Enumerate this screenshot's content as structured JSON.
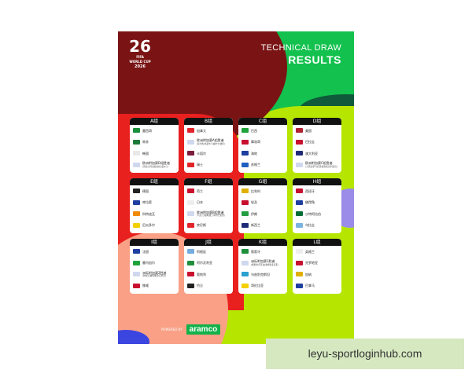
{
  "logo": {
    "numerals": "26",
    "brand": "FIFA",
    "line1": "WORLD CUP",
    "line2": "2026"
  },
  "header": {
    "line1": "TECHNICAL DRAW",
    "line2": "RESULTS"
  },
  "groups": [
    {
      "name": "A组",
      "teams": [
        {
          "n": "墨西哥",
          "c": "#1a8f3a"
        },
        {
          "n": "南非",
          "c": "#1f7a3a"
        },
        {
          "n": "韩国",
          "c": "#e8e8e8"
        },
        {
          "n": "欧洲附加赛D组胜者",
          "s": "(丹麦/北马其顿/捷克/爱尔兰)",
          "c": "#cfd8ee"
        }
      ]
    },
    {
      "name": "B组",
      "teams": [
        {
          "n": "加拿大",
          "c": "#e0242a"
        },
        {
          "n": "欧洲附加赛A组胜者",
          "s": "(意大利/北爱尔兰/威尔士/波黑)",
          "c": "#cfd8ee"
        },
        {
          "n": "卡塔尔",
          "c": "#7b1d3a"
        },
        {
          "n": "瑞士",
          "c": "#e0242a"
        }
      ]
    },
    {
      "name": "C组",
      "teams": [
        {
          "n": "巴西",
          "c": "#1ea33a"
        },
        {
          "n": "摩洛哥",
          "c": "#c8102e"
        },
        {
          "n": "海地",
          "c": "#1e3fa0"
        },
        {
          "n": "苏格兰",
          "c": "#1e5fc0"
        }
      ]
    },
    {
      "name": "D组",
      "teams": [
        {
          "n": "美国",
          "c": "#b22234"
        },
        {
          "n": "巴拉圭",
          "c": "#c8102e"
        },
        {
          "n": "澳大利亚",
          "c": "#1e2a78"
        },
        {
          "n": "欧洲附加赛C组胜者",
          "s": "(土耳其/罗马尼亚/斯洛伐克/科索沃)",
          "c": "#cfd8ee"
        }
      ]
    },
    {
      "name": "E组",
      "teams": [
        {
          "n": "德国",
          "c": "#222"
        },
        {
          "n": "库拉索",
          "c": "#1e3fa0"
        },
        {
          "n": "科特迪瓦",
          "c": "#f08a00"
        },
        {
          "n": "厄瓜多尔",
          "c": "#f4d000"
        }
      ]
    },
    {
      "name": "F组",
      "teams": [
        {
          "n": "荷兰",
          "c": "#c8102e"
        },
        {
          "n": "日本",
          "c": "#eeeeee"
        },
        {
          "n": "欧洲附加赛B组胜者",
          "s": "(乌克兰/瑞典/波兰/阿尔巴尼亚)",
          "c": "#cfd8ee"
        },
        {
          "n": "突尼斯",
          "c": "#e0242a"
        }
      ]
    },
    {
      "name": "G组",
      "teams": [
        {
          "n": "比利时",
          "c": "#e0b000"
        },
        {
          "n": "埃及",
          "c": "#c8102e"
        },
        {
          "n": "伊朗",
          "c": "#239f40"
        },
        {
          "n": "新西兰",
          "c": "#1e2a78"
        }
      ]
    },
    {
      "name": "H组",
      "teams": [
        {
          "n": "西班牙",
          "c": "#c8102e"
        },
        {
          "n": "佛得角",
          "c": "#1e3fa0"
        },
        {
          "n": "沙特阿拉伯",
          "c": "#006c35"
        },
        {
          "n": "乌拉圭",
          "c": "#7ab3e0"
        }
      ]
    },
    {
      "name": "I组",
      "teams": [
        {
          "n": "法国",
          "c": "#1e3fa0"
        },
        {
          "n": "塞内加尔",
          "c": "#1ea33a"
        },
        {
          "n": "洲际附加赛2胜者",
          "s": "(伊拉克/玻利维亚/苏里南)",
          "c": "#cfd8ee"
        },
        {
          "n": "挪威",
          "c": "#c8102e"
        }
      ]
    },
    {
      "name": "J组",
      "teams": [
        {
          "n": "阿根廷",
          "c": "#74acdf"
        },
        {
          "n": "阿尔及利亚",
          "c": "#1e8f3a"
        },
        {
          "n": "奥地利",
          "c": "#c8102e"
        },
        {
          "n": "约旦",
          "c": "#222"
        }
      ]
    },
    {
      "name": "K组",
      "teams": [
        {
          "n": "葡萄牙",
          "c": "#1e8f3a"
        },
        {
          "n": "洲际附加赛1胜者",
          "s": "(刚果金/牙买加/新喀里多尼亚)",
          "c": "#cfd8ee"
        },
        {
          "n": "乌兹别克斯坦",
          "c": "#2aa0d0"
        },
        {
          "n": "哥伦比亚",
          "c": "#f4d000"
        }
      ]
    },
    {
      "name": "L组",
      "teams": [
        {
          "n": "英格兰",
          "c": "#eeeeee"
        },
        {
          "n": "克罗地亚",
          "c": "#c8102e"
        },
        {
          "n": "加纳",
          "c": "#e0b000"
        },
        {
          "n": "巴拿马",
          "c": "#1e3fa0"
        }
      ]
    }
  ],
  "footer": {
    "powered": "POWERED BY",
    "sponsor": "aramco"
  },
  "watermark": "leyu-sportloginhub.com"
}
